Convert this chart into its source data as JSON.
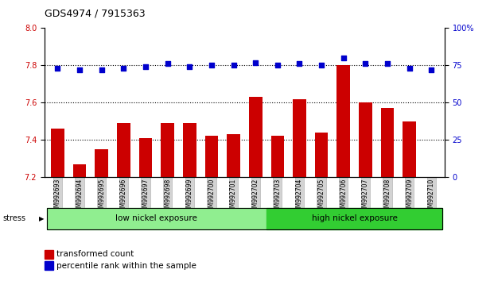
{
  "title": "GDS4974 / 7915363",
  "samples": [
    "GSM992693",
    "GSM992694",
    "GSM992695",
    "GSM992696",
    "GSM992697",
    "GSM992698",
    "GSM992699",
    "GSM992700",
    "GSM992701",
    "GSM992702",
    "GSM992703",
    "GSM992704",
    "GSM992705",
    "GSM992706",
    "GSM992707",
    "GSM992708",
    "GSM992709",
    "GSM992710"
  ],
  "bar_values": [
    7.46,
    7.27,
    7.35,
    7.49,
    7.41,
    7.49,
    7.49,
    7.42,
    7.43,
    7.63,
    7.42,
    7.62,
    7.44,
    7.8,
    7.6,
    7.57,
    7.5,
    7.2
  ],
  "dot_values": [
    73,
    72,
    72,
    73,
    74,
    76,
    74,
    75,
    75,
    77,
    75,
    76,
    75,
    80,
    76,
    76,
    73,
    72
  ],
  "bar_color": "#cc0000",
  "dot_color": "#0000cc",
  "bar_bottom": 7.2,
  "ylim_left": [
    7.2,
    8.0
  ],
  "ylim_right": [
    0,
    100
  ],
  "yticks_left": [
    7.2,
    7.4,
    7.6,
    7.8,
    8.0
  ],
  "yticks_right": [
    0,
    25,
    50,
    75,
    100
  ],
  "group1_label": "low nickel exposure",
  "group2_label": "high nickel exposure",
  "group1_count": 10,
  "group1_color": "#90ee90",
  "group2_color": "#32cd32",
  "legend_bar": "transformed count",
  "legend_dot": "percentile rank within the sample",
  "xticklabel_bg": "#d3d3d3",
  "bar_width": 0.6
}
